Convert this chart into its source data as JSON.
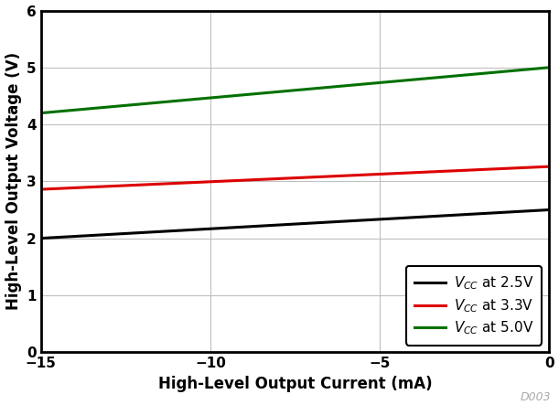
{
  "lines": [
    {
      "label_plain": "V",
      "label_sub": "CC",
      "label_rest": " at 2.5V",
      "color": "#000000",
      "x": [
        -15,
        0
      ],
      "y": [
        2.0,
        2.5
      ]
    },
    {
      "label_plain": "V",
      "label_sub": "CC",
      "label_rest": " at 3.3V",
      "color": "#dd0000",
      "x": [
        -15,
        0
      ],
      "y": [
        2.86,
        3.26
      ]
    },
    {
      "label_plain": "V",
      "label_sub": "CC",
      "label_rest": " at 5.0V",
      "color": "#007000",
      "x": [
        -15,
        0
      ],
      "y": [
        4.2,
        5.0
      ]
    }
  ],
  "xlabel": "High-Level Output Current (mA)",
  "ylabel": "High-Level Output Voltage (V)",
  "xlim": [
    -15,
    0
  ],
  "ylim": [
    0,
    6
  ],
  "xticks": [
    -15,
    -10,
    -5,
    0
  ],
  "yticks": [
    0,
    1,
    2,
    3,
    4,
    5,
    6
  ],
  "grid_color": "#c0c0c0",
  "linewidth": 2.2,
  "watermark": "D003",
  "bg_color": "#ffffff",
  "axis_label_fontsize": 12,
  "tick_fontsize": 11,
  "legend_fontsize": 11
}
